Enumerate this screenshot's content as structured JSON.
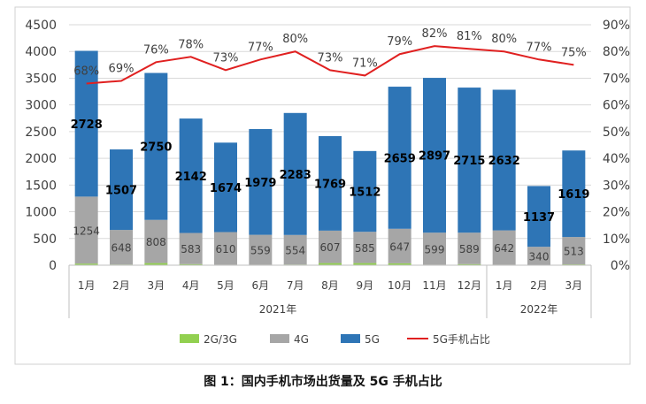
{
  "caption": "图 1：国内手机市场出货量及 5G 手机占比",
  "chart_data": {
    "type": "bar",
    "categories": [
      "1月",
      "2月",
      "3月",
      "4月",
      "5月",
      "6月",
      "7月",
      "8月",
      "9月",
      "10月",
      "11月",
      "12月",
      "1月",
      "2月",
      "3月"
    ],
    "year_groups": [
      {
        "label": "2021年",
        "count": 12
      },
      {
        "label": "2022年",
        "count": 3
      }
    ],
    "stacked": true,
    "series": [
      {
        "name": "2G/3G",
        "values": [
          30,
          12,
          40,
          20,
          10,
          10,
          12,
          40,
          40,
          35,
          10,
          20,
          10,
          5,
          15
        ],
        "color": "#92d050"
      },
      {
        "name": "4G",
        "values": [
          1254,
          648,
          808,
          583,
          610,
          559,
          554,
          607,
          585,
          647,
          599,
          589,
          642,
          340,
          513
        ],
        "color": "#a6a6a6"
      },
      {
        "name": "5G",
        "values": [
          2728,
          1507,
          2750,
          2142,
          1674,
          1979,
          2283,
          1769,
          1512,
          2659,
          2897,
          2715,
          2632,
          1137,
          1619
        ],
        "color": "#2e75b6"
      }
    ],
    "line_series": {
      "name": "5G手机占比",
      "values": [
        68,
        69,
        76,
        78,
        73,
        77,
        80,
        73,
        71,
        79,
        82,
        81,
        80,
        77,
        75
      ],
      "labels": [
        "68%",
        "69%",
        "76%",
        "78%",
        "73%",
        "77%",
        "80%",
        "73%",
        "71%",
        "79%",
        "82%",
        "81%",
        "80%",
        "77%",
        "75%"
      ],
      "color": "#e02020"
    },
    "y_left": {
      "min": 0,
      "max": 4500,
      "ticks": [
        0,
        500,
        1000,
        1500,
        2000,
        2500,
        3000,
        3500,
        4000,
        4500
      ]
    },
    "y_right": {
      "min": 0,
      "max": 90,
      "ticks": [
        "0%",
        "10%",
        "20%",
        "30%",
        "40%",
        "50%",
        "60%",
        "70%",
        "80%",
        "90%"
      ]
    },
    "legend_position": "bottom"
  }
}
